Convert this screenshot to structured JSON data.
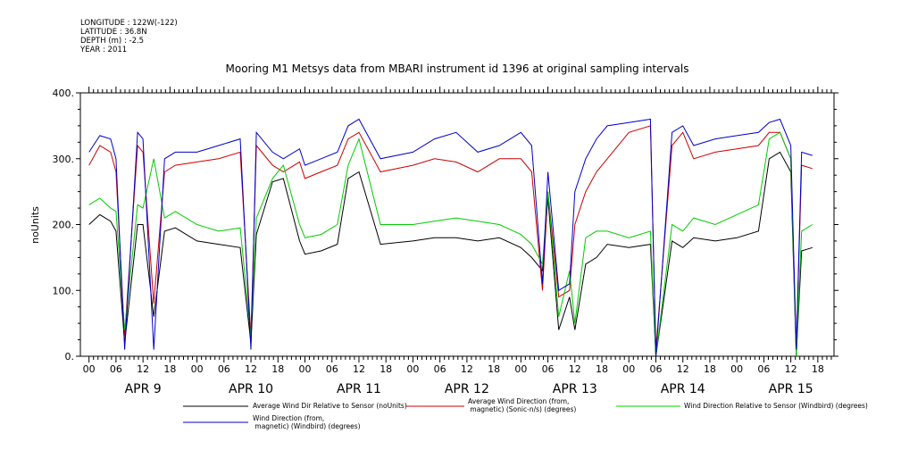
{
  "header": {
    "meta_lines": [
      "LONGITUDE : 122W(-122)",
      "LATITUDE : 36.8N",
      "DEPTH (m) : -2.5",
      "YEAR : 2011"
    ]
  },
  "chart_data": {
    "type": "line",
    "title": "Mooring M1 Metsys data from MBARI instrument id 1396 at original sampling intervals",
    "xlabel": "",
    "ylabel": "noUnits",
    "ylim": [
      0,
      400
    ],
    "y_ticks": [
      0,
      100,
      200,
      300,
      400
    ],
    "y_tick_labels": [
      "0.",
      "100.",
      "200.",
      "300.",
      "400."
    ],
    "xlim": [
      -0.08,
      6.9
    ],
    "x_hour_ticks": [
      "00",
      "06",
      "12",
      "18"
    ],
    "x_day_labels": [
      "APR  9",
      "APR 10",
      "APR 11",
      "APR 12",
      "APR 13",
      "APR 14",
      "APR 15"
    ],
    "grid": false,
    "legend_position": "bottom",
    "x_unit": "days since APR 9 00:00 (2011)",
    "series": [
      {
        "name": "Average Wind Dir Relative to Sensor (noUnits)",
        "color": "#000000",
        "x": [
          0,
          0.1,
          0.2,
          0.25,
          0.33,
          0.45,
          0.5,
          0.6,
          0.7,
          0.8,
          1.0,
          1.2,
          1.4,
          1.5,
          1.55,
          1.7,
          1.8,
          1.95,
          2.0,
          2.15,
          2.3,
          2.4,
          2.5,
          2.7,
          3.0,
          3.2,
          3.4,
          3.6,
          3.8,
          4.0,
          4.1,
          4.2,
          4.25,
          4.35,
          4.45,
          4.5,
          4.6,
          4.7,
          4.8,
          5.0,
          5.2,
          5.25,
          5.4,
          5.5,
          5.6,
          5.8,
          6.0,
          6.2,
          6.3,
          6.4,
          6.5,
          6.55,
          6.6,
          6.7
        ],
        "y": [
          200,
          215,
          205,
          190,
          20,
          200,
          200,
          60,
          190,
          195,
          175,
          170,
          165,
          20,
          185,
          265,
          270,
          175,
          155,
          160,
          170,
          270,
          280,
          170,
          175,
          180,
          180,
          175,
          180,
          165,
          150,
          130,
          240,
          40,
          90,
          40,
          140,
          150,
          170,
          165,
          170,
          0,
          175,
          165,
          180,
          175,
          180,
          190,
          300,
          310,
          280,
          0,
          160,
          165
        ]
      },
      {
        "name": "Average Wind Direction (from, magnetic) (Sonic-n/s) (degrees)",
        "color": "#cc0000",
        "x": [
          0,
          0.1,
          0.2,
          0.25,
          0.33,
          0.45,
          0.5,
          0.6,
          0.7,
          0.8,
          1.0,
          1.2,
          1.4,
          1.5,
          1.55,
          1.7,
          1.8,
          1.95,
          2.0,
          2.15,
          2.3,
          2.4,
          2.5,
          2.7,
          3.0,
          3.2,
          3.4,
          3.6,
          3.8,
          4.0,
          4.1,
          4.2,
          4.25,
          4.35,
          4.45,
          4.5,
          4.6,
          4.7,
          4.8,
          5.0,
          5.2,
          5.25,
          5.4,
          5.5,
          5.6,
          5.8,
          6.0,
          6.2,
          6.3,
          6.4,
          6.5,
          6.55,
          6.6,
          6.7
        ],
        "y": [
          290,
          320,
          310,
          280,
          30,
          320,
          310,
          80,
          280,
          290,
          295,
          300,
          310,
          30,
          320,
          290,
          280,
          295,
          270,
          280,
          290,
          330,
          340,
          280,
          290,
          300,
          295,
          280,
          300,
          300,
          280,
          100,
          250,
          90,
          100,
          200,
          250,
          280,
          300,
          340,
          350,
          10,
          320,
          340,
          300,
          310,
          315,
          320,
          340,
          340,
          300,
          10,
          290,
          285
        ]
      },
      {
        "name": "Wind Direction Relative to Sensor (Windbird) (degrees)",
        "color": "#00cc00",
        "x": [
          0,
          0.1,
          0.2,
          0.25,
          0.33,
          0.45,
          0.5,
          0.6,
          0.7,
          0.8,
          1.0,
          1.2,
          1.4,
          1.5,
          1.55,
          1.7,
          1.8,
          1.95,
          2.0,
          2.15,
          2.3,
          2.4,
          2.5,
          2.7,
          3.0,
          3.2,
          3.4,
          3.6,
          3.8,
          4.0,
          4.1,
          4.2,
          4.25,
          4.35,
          4.45,
          4.5,
          4.6,
          4.7,
          4.8,
          5.0,
          5.2,
          5.25,
          5.4,
          5.5,
          5.6,
          5.8,
          6.0,
          6.2,
          6.3,
          6.4,
          6.5,
          6.55,
          6.6,
          6.7
        ],
        "y": [
          230,
          240,
          225,
          220,
          40,
          230,
          225,
          300,
          210,
          220,
          200,
          190,
          195,
          30,
          210,
          270,
          290,
          200,
          180,
          185,
          200,
          290,
          330,
          200,
          200,
          205,
          210,
          205,
          200,
          185,
          170,
          140,
          250,
          60,
          130,
          50,
          180,
          190,
          190,
          180,
          190,
          0,
          200,
          190,
          210,
          200,
          215,
          230,
          330,
          340,
          300,
          0,
          190,
          200
        ]
      },
      {
        "name": "Wind Direction (from, magnetic) (Windbird) (degrees)",
        "color": "#0000cc",
        "x": [
          0,
          0.1,
          0.2,
          0.25,
          0.33,
          0.45,
          0.5,
          0.6,
          0.7,
          0.8,
          1.0,
          1.2,
          1.4,
          1.5,
          1.55,
          1.7,
          1.8,
          1.95,
          2.0,
          2.15,
          2.3,
          2.4,
          2.5,
          2.7,
          3.0,
          3.2,
          3.4,
          3.6,
          3.8,
          4.0,
          4.1,
          4.2,
          4.25,
          4.35,
          4.45,
          4.5,
          4.6,
          4.7,
          4.8,
          5.0,
          5.2,
          5.25,
          5.4,
          5.5,
          5.6,
          5.8,
          6.0,
          6.2,
          6.3,
          6.4,
          6.5,
          6.55,
          6.6,
          6.7
        ],
        "y": [
          310,
          335,
          330,
          300,
          10,
          340,
          330,
          10,
          300,
          310,
          310,
          320,
          330,
          10,
          340,
          310,
          300,
          315,
          290,
          300,
          310,
          350,
          360,
          300,
          310,
          330,
          340,
          310,
          320,
          340,
          320,
          110,
          280,
          100,
          110,
          250,
          300,
          330,
          350,
          355,
          360,
          0,
          340,
          350,
          320,
          330,
          335,
          340,
          355,
          360,
          320,
          10,
          310,
          305
        ]
      }
    ]
  }
}
